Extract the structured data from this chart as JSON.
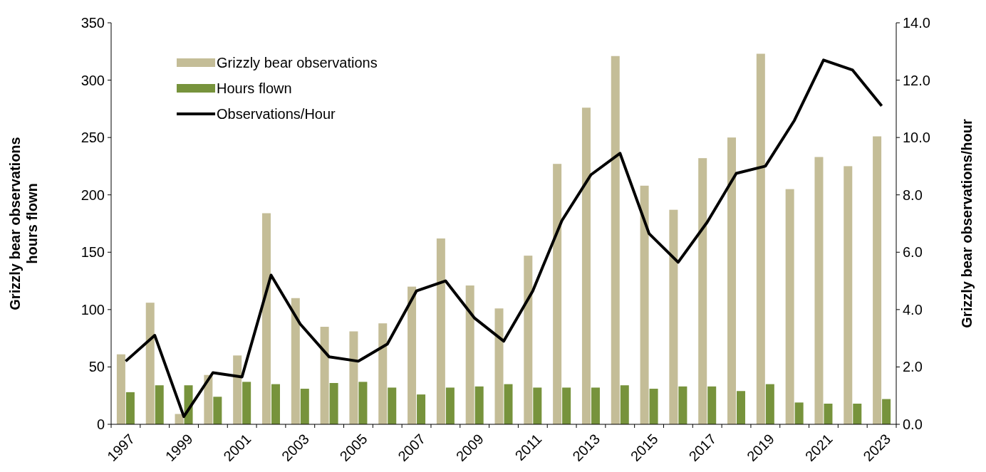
{
  "chart_data": {
    "type": "bar",
    "ylabel": "Grizzly bear observations\nhours flown",
    "y2label": "Grizzly bear observations/hour",
    "categories": [
      "1997",
      null,
      "1999",
      null,
      "2001",
      null,
      "2003",
      null,
      "2005",
      null,
      "2007",
      null,
      "2009",
      null,
      "2011",
      null,
      "2013",
      null,
      "2015",
      null,
      "2017",
      null,
      "2019",
      null,
      "2021",
      null,
      "2023"
    ],
    "series": [
      {
        "name": "Grizzly bear observations",
        "color": "#c4bd97",
        "values": [
          61,
          106,
          9,
          43,
          60,
          184,
          110,
          85,
          81,
          88,
          120,
          162,
          121,
          101,
          147,
          227,
          276,
          321,
          208,
          187,
          232,
          250,
          323,
          205,
          233,
          225,
          251
        ]
      },
      {
        "name": "Hours flown",
        "color": "#77933c",
        "values": [
          28,
          34,
          34,
          24,
          37,
          35,
          31,
          36,
          37,
          32,
          26,
          32,
          33,
          35,
          32,
          32,
          32,
          34,
          31,
          33,
          33,
          29,
          35,
          19,
          18,
          18,
          22
        ]
      },
      {
        "name": "Observations/Hour",
        "type": "line",
        "axis": "y2",
        "color": "#000000",
        "values": [
          2.2,
          3.1,
          0.27,
          1.8,
          1.65,
          5.2,
          3.5,
          2.35,
          2.2,
          2.8,
          4.65,
          5.0,
          3.7,
          2.9,
          4.65,
          7.1,
          8.7,
          9.45,
          6.65,
          5.65,
          7.05,
          8.75,
          9.0,
          10.6,
          12.7,
          12.35,
          11.1
        ]
      }
    ],
    "ylim": [
      0,
      350
    ],
    "yticks": [
      0,
      50,
      100,
      150,
      200,
      250,
      300,
      350
    ],
    "y2lim": [
      0,
      14
    ],
    "y2ticks": [
      {
        "value": 0,
        "label": "0.0"
      },
      {
        "value": 2,
        "label": "2.0"
      },
      {
        "value": 4,
        "label": "4.0"
      },
      {
        "value": 6,
        "label": "6.0"
      },
      {
        "value": 8,
        "label": "8.0"
      },
      {
        "value": 10,
        "label": "10.0"
      },
      {
        "value": 12,
        "label": "12.0"
      },
      {
        "value": 14,
        "label": "14.0"
      }
    ],
    "legend": "top left",
    "grid": false,
    "marker": "none",
    "line_style": "solid"
  }
}
